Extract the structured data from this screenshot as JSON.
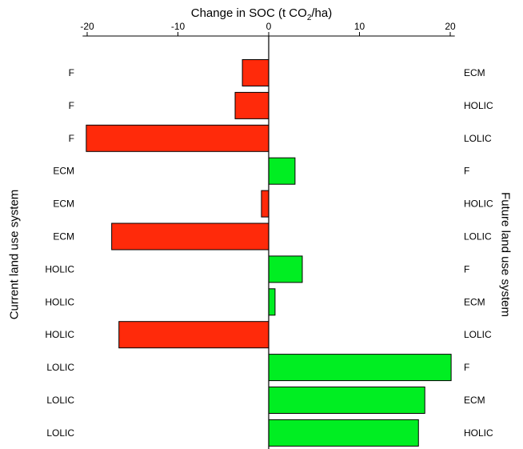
{
  "chart_data": {
    "type": "bar",
    "orientation": "horizontal",
    "title_prefix": "Change in SOC (t CO",
    "title_sub": "2",
    "title_suffix": "/ha)",
    "xlim": [
      -20.5,
      20.5
    ],
    "xticks": [
      -20,
      -10,
      0,
      10,
      20
    ],
    "xtick_labels": [
      "-20",
      "-10",
      "0",
      "10",
      "20"
    ],
    "ylabel_left": "Current land use system",
    "ylabel_right": "Future land use system",
    "positive_color": "#00ee22",
    "negative_color": "#ff2a0a",
    "categories_current": [
      "F",
      "F",
      "F",
      "ECM",
      "ECM",
      "ECM",
      "HOLIC",
      "HOLIC",
      "HOLIC",
      "LOLIC",
      "LOLIC",
      "LOLIC"
    ],
    "categories_future": [
      "ECM",
      "HOLIC",
      "LOLIC",
      "F",
      "HOLIC",
      "LOLIC",
      "F",
      "ECM",
      "LOLIC",
      "F",
      "ECM",
      "HOLIC"
    ],
    "values": [
      -2.9,
      -3.7,
      -20.1,
      2.9,
      -0.8,
      -17.3,
      3.7,
      0.7,
      -16.5,
      20.1,
      17.2,
      16.5
    ]
  }
}
